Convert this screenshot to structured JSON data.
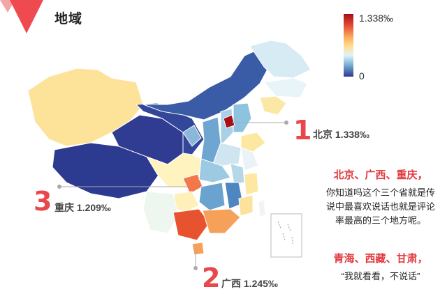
{
  "title": "地域",
  "legend": {
    "max_label": "1.338‰",
    "min_label": "0",
    "color_high": "#a50f15",
    "color_low": "#313695"
  },
  "callouts": [
    {
      "rank": "1",
      "label": "北京 1.338‰"
    },
    {
      "rank": "2",
      "label": "广西 1.245‰"
    },
    {
      "rank": "3",
      "label": "重庆 1.209‰"
    }
  ],
  "notes": {
    "top_heading": "北京、广西、重庆，",
    "top_lines": [
      "你知道吗这个三个省就是传",
      "说中最喜欢说话也就是评论",
      "率最高的三个地方呢。"
    ],
    "bottom_heading": "青海、西藏、甘肃，",
    "bottom_line": "“我就看看，不说话”"
  }
}
